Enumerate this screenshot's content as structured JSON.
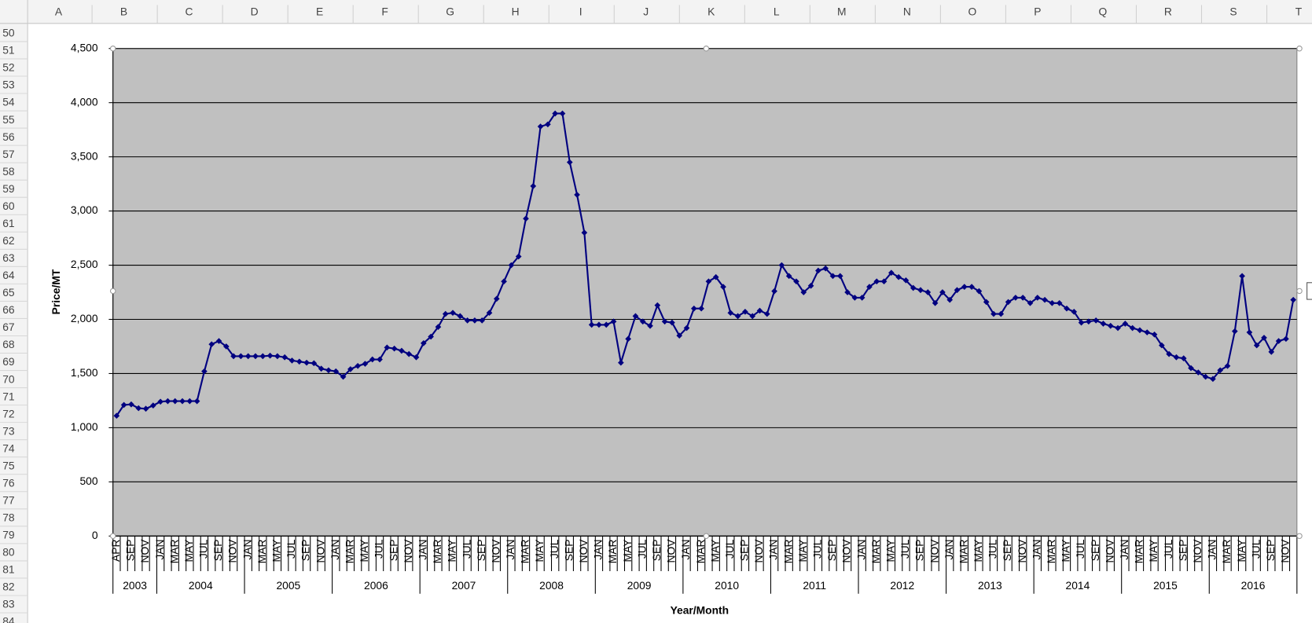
{
  "sheet": {
    "columns": [
      "A",
      "B",
      "C",
      "D",
      "E",
      "F",
      "G",
      "H",
      "I",
      "J",
      "K",
      "L",
      "M",
      "N",
      "O",
      "P",
      "Q",
      "R",
      "S",
      "T"
    ],
    "rows": [
      50,
      51,
      52,
      53,
      54,
      55,
      56,
      57,
      58,
      59,
      60,
      61,
      62,
      63,
      64,
      65,
      66,
      67,
      68,
      69,
      70,
      71,
      72,
      73,
      74,
      75,
      76,
      77,
      78,
      79,
      80,
      81,
      82,
      83,
      84
    ]
  },
  "chart_data": {
    "type": "line",
    "y_label": "Price/MT",
    "x_label": "Year/Month",
    "categories": [
      "APR",
      null,
      "SEP",
      null,
      "NOV",
      null,
      "JAN",
      null,
      "MAR",
      null,
      "MAY",
      null,
      "JUL",
      null,
      "SEP",
      null,
      "NOV",
      null,
      "JAN",
      null,
      "MAR",
      null,
      "MAY",
      null,
      "JUL",
      null,
      "SEP",
      null,
      "NOV",
      null,
      "JAN",
      null,
      "MAR",
      null,
      "MAY",
      null,
      "JUL",
      null,
      "SEP",
      null,
      "NOV",
      null,
      "JAN",
      null,
      "MAR",
      null,
      "MAY",
      null,
      "JUL",
      null,
      "SEP",
      null,
      "NOV",
      null,
      "JAN",
      null,
      "MAR",
      null,
      "MAY",
      null,
      "JUL",
      null,
      "SEP",
      null,
      "NOV",
      null,
      "JAN",
      null,
      "MAR",
      null,
      "MAY",
      null,
      "JUL",
      null,
      "SEP",
      null,
      "NOV",
      null,
      "JAN",
      null,
      "MAR",
      null,
      "MAY",
      null,
      "JUL",
      null,
      "SEP",
      null,
      "NOV",
      null,
      "JAN",
      null,
      "MAR",
      null,
      "MAY",
      null,
      "JUL",
      null,
      "SEP",
      null,
      "NOV",
      null,
      "JAN",
      null,
      "MAR",
      null,
      "MAY",
      null,
      "JUL",
      null,
      "SEP",
      null,
      "NOV",
      null,
      "JAN",
      null,
      "MAR",
      null,
      "MAY",
      null,
      "JUL",
      null,
      "SEP",
      null,
      "NOV",
      null,
      "JAN",
      null,
      "MAR",
      null,
      "MAY",
      null,
      "JUL",
      null,
      "SEP",
      null,
      "NOV",
      null,
      "JAN",
      null,
      "MAR",
      null,
      "MAY",
      null,
      "JUL",
      null,
      "SEP",
      null,
      "NOV",
      null,
      "JAN",
      null,
      "MAR",
      null,
      "MAY",
      null,
      "JUL",
      null,
      "SEP",
      null,
      "NOV",
      null
    ],
    "years": [
      "2003",
      "2004",
      "2005",
      "2006",
      "2007",
      "2008",
      "2009",
      "2010",
      "2011",
      "2012",
      "2013",
      "2014",
      "2015",
      "2016"
    ],
    "series": [
      {
        "color": "#000080",
        "values": [
          1110,
          1210,
          1215,
          1180,
          1175,
          1205,
          1240,
          1245,
          1245,
          1245,
          1245,
          1245,
          1520,
          1770,
          1800,
          1750,
          1660,
          1660,
          1660,
          1660,
          1660,
          1665,
          1660,
          1650,
          1620,
          1610,
          1600,
          1595,
          1545,
          1530,
          1520,
          1470,
          1540,
          1570,
          1590,
          1630,
          1630,
          1740,
          1730,
          1710,
          1680,
          1650,
          1780,
          1840,
          1930,
          2050,
          2060,
          2030,
          1990,
          1990,
          1990,
          2060,
          2190,
          2350,
          2500,
          2580,
          2930,
          3230,
          3780,
          3800,
          3900,
          3900,
          3450,
          3150,
          2800,
          1950,
          1950,
          1950,
          1980,
          1600,
          1820,
          2030,
          1980,
          1940,
          2130,
          1980,
          1970,
          1850,
          1920,
          2100,
          2100,
          2350,
          2390,
          2300,
          2060,
          2030,
          2070,
          2030,
          2080,
          2050,
          2260,
          2500,
          2400,
          2350,
          2250,
          2310,
          2450,
          2470,
          2400,
          2400,
          2250,
          2200,
          2200,
          2300,
          2350,
          2350,
          2430,
          2390,
          2360,
          2290,
          2270,
          2250,
          2150,
          2250,
          2180,
          2270,
          2300,
          2300,
          2260,
          2160,
          2050,
          2050,
          2160,
          2200,
          2200,
          2150,
          2200,
          2180,
          2150,
          2150,
          2100,
          2070,
          1970,
          1980,
          1990,
          1960,
          1940,
          1920,
          1960,
          1920,
          1900,
          1880,
          1860,
          1760,
          1680,
          1650,
          1640,
          1550,
          1510,
          1470,
          1450,
          1530,
          1570,
          1890,
          2400,
          1880,
          1760,
          1830,
          1700,
          1800,
          1820,
          2180
        ]
      }
    ],
    "ylim": [
      0,
      4500
    ],
    "yticks": [
      0,
      500,
      {
        "value": 1000,
        "label": "1,000"
      },
      {
        "value": 1500,
        "label": "1,500"
      },
      {
        "value": 2000,
        "label": "2,000"
      },
      {
        "value": 2500,
        "label": "2,500"
      },
      {
        "value": 3000,
        "label": "3,000"
      },
      {
        "value": 3500,
        "label": "3,500"
      },
      {
        "value": 4000,
        "label": "4,000"
      },
      {
        "value": 4500,
        "label": "4,500"
      }
    ],
    "grid": true,
    "plot_color": "#c0c0c0"
  }
}
